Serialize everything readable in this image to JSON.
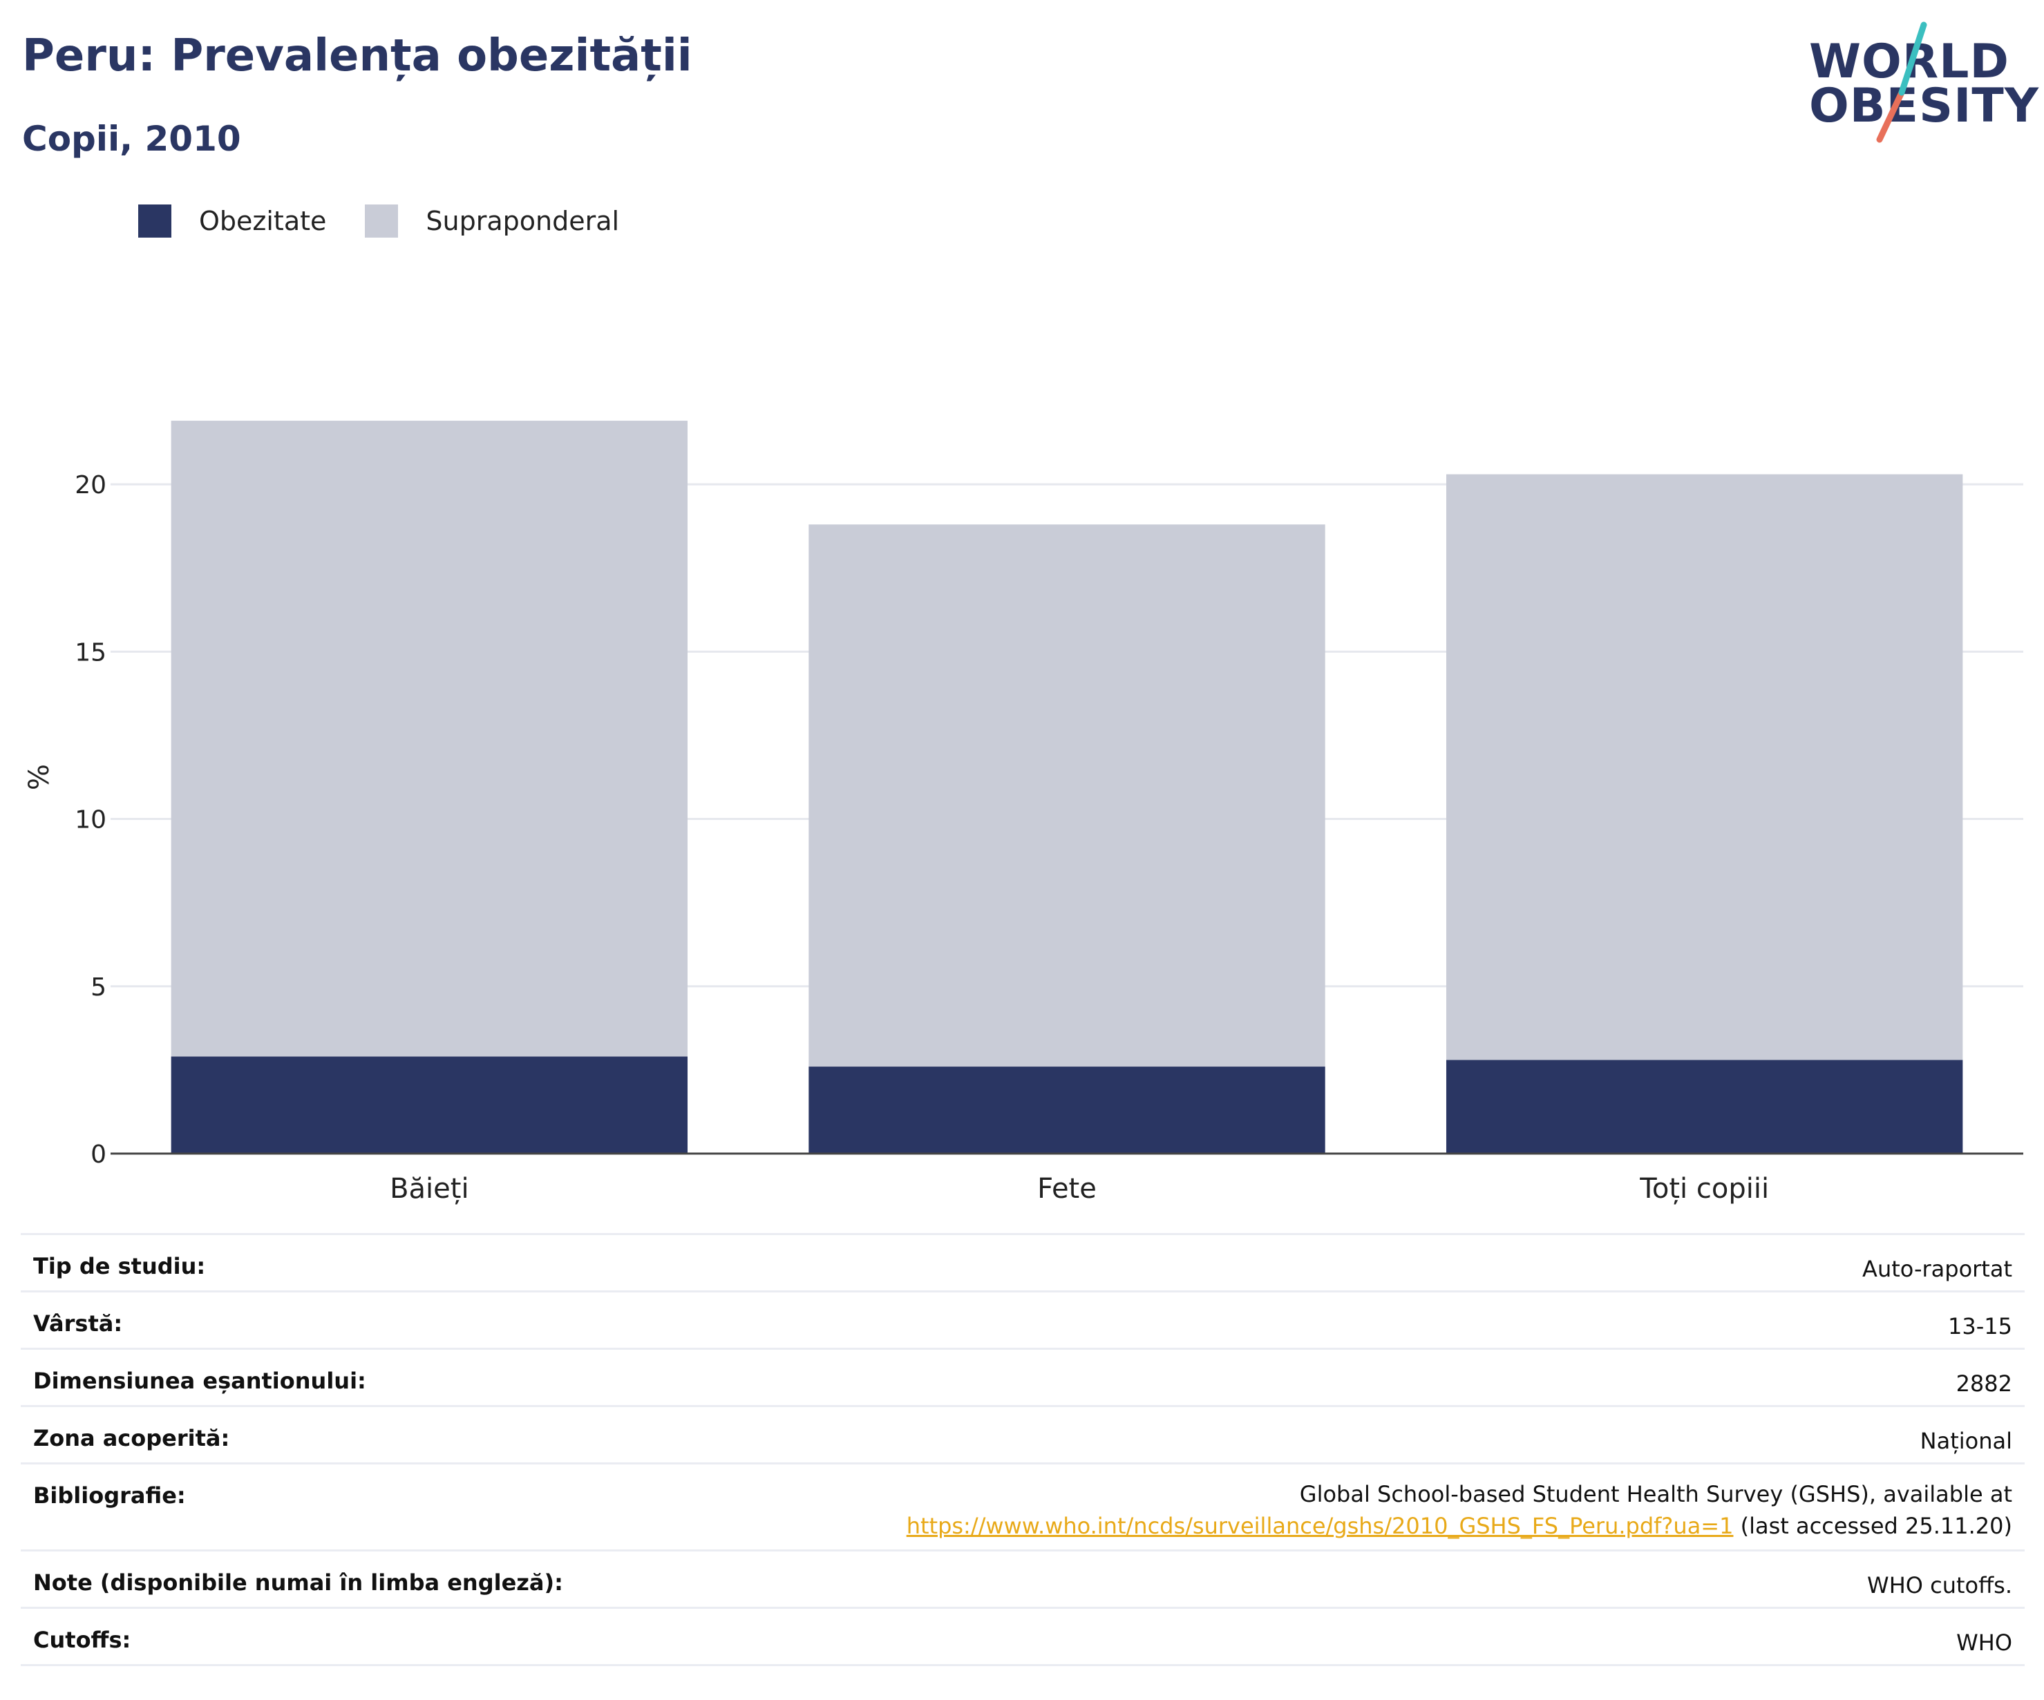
{
  "header": {
    "title": "Peru: Prevalența obezității",
    "subtitle": "Copii, 2010"
  },
  "logo": {
    "line1": "WORLD",
    "line2": "OBESITY"
  },
  "colors": {
    "obesity": "#2a3663",
    "overweight": "#c9ccd7",
    "text": "#222222",
    "link": "#e8a918",
    "grid": "#e6e8ee",
    "slash_teal": "#3bbfc0",
    "slash_coral": "#e8705a"
  },
  "legend": [
    {
      "label": "Obezitate",
      "color": "#2a3663"
    },
    {
      "label": "Supraponderal",
      "color": "#c9ccd7"
    }
  ],
  "chart_data": {
    "type": "bar",
    "stacked": true,
    "categories": [
      "Băieți",
      "Fete",
      "Toți copiii"
    ],
    "series": [
      {
        "name": "Obezitate",
        "values": [
          2.9,
          2.6,
          2.8
        ]
      },
      {
        "name": "Supraponderal",
        "values": [
          19.0,
          16.2,
          17.5
        ]
      }
    ],
    "ylabel": "%",
    "ylim": [
      0,
      22.5
    ],
    "yticks": [
      0,
      5,
      10,
      15,
      20
    ],
    "grid": true,
    "legend_position": "top-left"
  },
  "meta": {
    "rows": [
      {
        "label": "Tip de studiu:",
        "value": "Auto-raportat"
      },
      {
        "label": "Vârstă:",
        "value": "13-15"
      },
      {
        "label": "Dimensiunea eșantionului:",
        "value": "2882"
      },
      {
        "label": "Zona acoperită:",
        "value": "Național"
      }
    ],
    "bibliography": {
      "label": "Bibliografie:",
      "line1": "Global School-based Student Health Survey (GSHS), available at",
      "link": "https://www.who.int/ncds/surveillance/gshs/2010_GSHS_FS_Peru.pdf?ua=1",
      "suffix": " (last accessed 25.11.20)"
    },
    "rows_after": [
      {
        "label": "Note (disponibile numai în limba engleză):",
        "value": "WHO cutoffs."
      },
      {
        "label": "Cutoffs:",
        "value": "WHO"
      }
    ]
  }
}
